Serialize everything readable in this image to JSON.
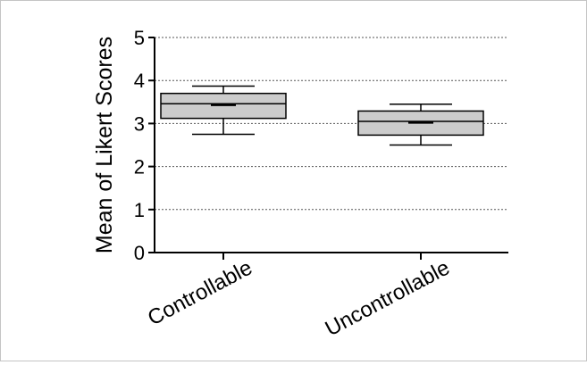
{
  "chart_data": {
    "type": "box",
    "ylabel": "Mean of Likert Scores",
    "xlabel": "",
    "ylim": [
      0,
      5
    ],
    "yticks": [
      0,
      1,
      2,
      3,
      4,
      5
    ],
    "grid": "horizontal dotted",
    "categories": [
      "Controllable",
      "Uncontrollable"
    ],
    "boxes": [
      {
        "category": "Controllable",
        "whisker_low": 2.75,
        "q1": 3.12,
        "median": 3.46,
        "q3": 3.7,
        "whisker_high": 3.87,
        "mean": 3.43
      },
      {
        "category": "Uncontrollable",
        "whisker_low": 2.5,
        "q1": 2.73,
        "median": 3.05,
        "q3": 3.29,
        "whisker_high": 3.45,
        "mean": 3.02
      }
    ],
    "colors": {
      "box_fill": "#cccccc",
      "stroke": "#000000",
      "grid": "#555555"
    }
  }
}
